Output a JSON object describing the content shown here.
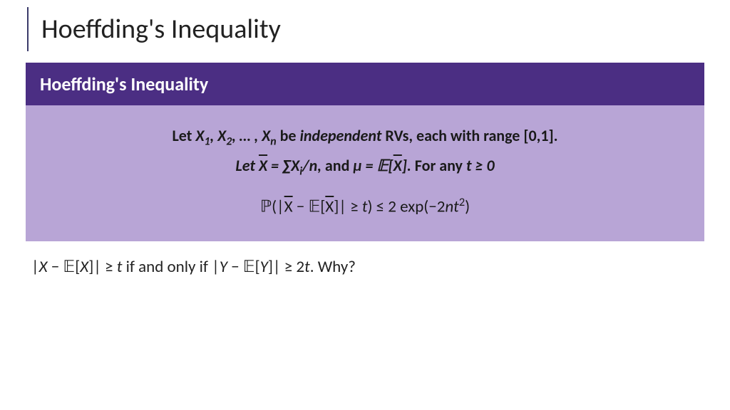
{
  "slide": {
    "title": "Hoeffding's Inequality",
    "accent_color": "#3a3a6a",
    "title_color": "#222222",
    "title_fontsize": 38
  },
  "theorem": {
    "header": "Hoeffding's Inequality",
    "header_bg": "#4b2e83",
    "header_fg": "#ffffff",
    "header_fontsize": 26,
    "body_bg": "#b8a5d6",
    "body_fg": "#1a1a1a",
    "body_fontsize": 22,
    "line1_pre": "Let ",
    "line1_vars": "X₁, X₂, … , Xₙ",
    "line1_mid": " be ",
    "line1_indep": "independent",
    "line1_post": " RVs, each with range ",
    "line1_range": "[0,1].",
    "line2_pre": "Let ",
    "line2_xbar": "X̄ = ∑Xᵢ/n,",
    "line2_mid": "  and ",
    "line2_mu": "μ = 𝔼[X̄].",
    "line2_post": " For any ",
    "line2_t": "t ≥ 0",
    "formula": "ℙ(|X̄ − 𝔼[X̄]| ≥ t) ≤ 2 exp(−2nt²)"
  },
  "below": {
    "part1": "|X − 𝔼[X]| ≥ t",
    "mid": " if and only if ",
    "part2": "|Y − 𝔼[Y]| ≥ 2t",
    "tail": ". Why?",
    "fontsize": 23,
    "color": "#222222"
  },
  "background_color": "#ffffff"
}
